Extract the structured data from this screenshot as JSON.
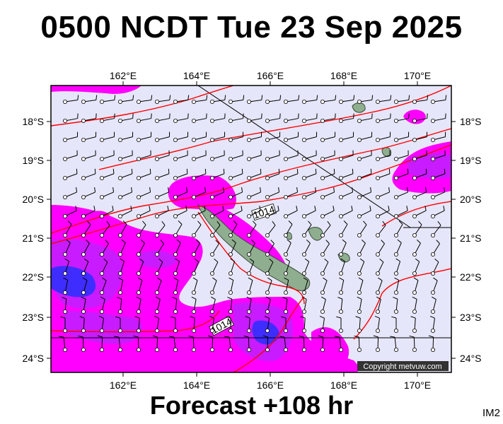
{
  "title": "0500 NCDT Tue 23 Sep 2025",
  "footer": "Forecast +108 hr",
  "corner_label": "IM2",
  "copyright": "Copyright metvuw.com",
  "longitude_labels": [
    "162°E",
    "164°E",
    "166°E",
    "168°E",
    "170°E"
  ],
  "latitude_labels": [
    "18°S",
    "19°S",
    "20°S",
    "21°S",
    "22°S",
    "23°S",
    "24°S"
  ],
  "isobar_labels": [
    "1014",
    "1014"
  ],
  "colors": {
    "background": "#e6e6fa",
    "rain_light": "#ff00ff",
    "rain_medium": "#c020ff",
    "rain_heavy": "#3030ff",
    "isobar": "#ff0000",
    "land": "#8fae8f"
  }
}
